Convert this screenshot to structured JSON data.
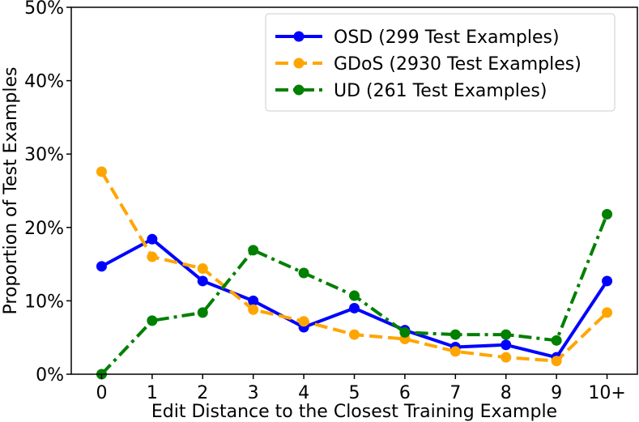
{
  "chart_data": {
    "type": "line",
    "categories": [
      "0",
      "1",
      "2",
      "3",
      "4",
      "5",
      "6",
      "7",
      "8",
      "9",
      "10+"
    ],
    "xlabel": "Edit Distance to the Closest Training Example",
    "ylabel": "Proportion of Test Examples",
    "ylim": [
      0,
      50
    ],
    "yticks": [
      0,
      10,
      20,
      30,
      40,
      50
    ],
    "ytick_labels": [
      "0%",
      "10%",
      "20%",
      "30%",
      "40%",
      "50%"
    ],
    "grid": false,
    "legend_position": "top-right",
    "series": [
      {
        "name": "OSD (299 Test Examples)",
        "color": "#0000ff",
        "line_style": "solid",
        "values": [
          14.7,
          18.4,
          12.7,
          10.0,
          6.4,
          9.0,
          6.0,
          3.7,
          4.0,
          2.3,
          12.7
        ]
      },
      {
        "name": "GDoS (2930 Test Examples)",
        "color": "#ffa500",
        "line_style": "dashed",
        "values": [
          27.6,
          16.0,
          14.4,
          8.8,
          7.2,
          5.4,
          4.8,
          3.1,
          2.3,
          1.8,
          8.4
        ]
      },
      {
        "name": "UD (261 Test Examples)",
        "color": "#008000",
        "line_style": "dashdot",
        "values": [
          0.0,
          7.3,
          8.4,
          16.9,
          13.8,
          10.7,
          5.7,
          5.4,
          5.4,
          4.6,
          21.8
        ]
      }
    ]
  }
}
